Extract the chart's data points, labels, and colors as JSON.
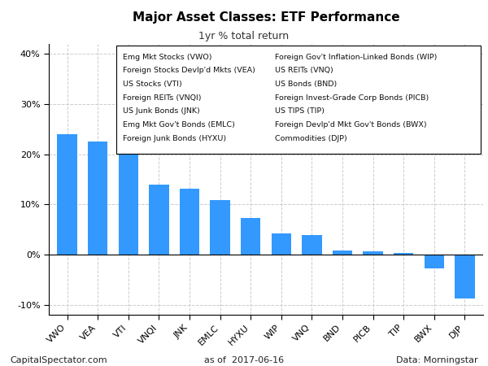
{
  "title": "Major Asset Classes: ETF Performance",
  "subtitle": "1yr % total return",
  "categories": [
    "VWO",
    "VEA",
    "VTI",
    "VNQI",
    "JNK",
    "EMLC",
    "HYXU",
    "WIP",
    "VNQ",
    "BND",
    "PICB",
    "TIP",
    "BWX",
    "DJP"
  ],
  "values": [
    24.0,
    22.5,
    20.0,
    14.0,
    13.2,
    10.8,
    7.3,
    4.2,
    3.9,
    0.8,
    0.6,
    0.4,
    -2.8,
    -8.8
  ],
  "bar_color": "#3399FF",
  "ylim": [
    -12,
    42
  ],
  "yticks": [
    -10,
    0,
    10,
    20,
    30,
    40
  ],
  "footer_left": "CapitalSpectator.com",
  "footer_center": "as of  2017-06-16",
  "footer_right": "Data: Morningstar",
  "legend_col1": [
    "Emg Mkt Stocks (VWO)",
    "Foreign Stocks Devlp'd Mkts (VEA)",
    "US Stocks (VTI)",
    "Foreign REITs (VNQI)",
    "US Junk Bonds (JNK)",
    "Emg Mkt Gov't Bonds (EMLC)",
    "Foreign Junk Bonds (HYXU)"
  ],
  "legend_col2": [
    "Foreign Gov't Inflation-Linked Bonds (WIP)",
    "US REITs (VNQ)",
    "US Bonds (BND)",
    "Foreign Invest-Grade Corp Bonds (PICB)",
    "US TIPS (TIP)",
    "Foreign Devlp'd Mkt Gov't Bonds (BWX)",
    "Commodities (DJP)"
  ],
  "background_color": "#FFFFFF",
  "grid_color": "#CCCCCC"
}
